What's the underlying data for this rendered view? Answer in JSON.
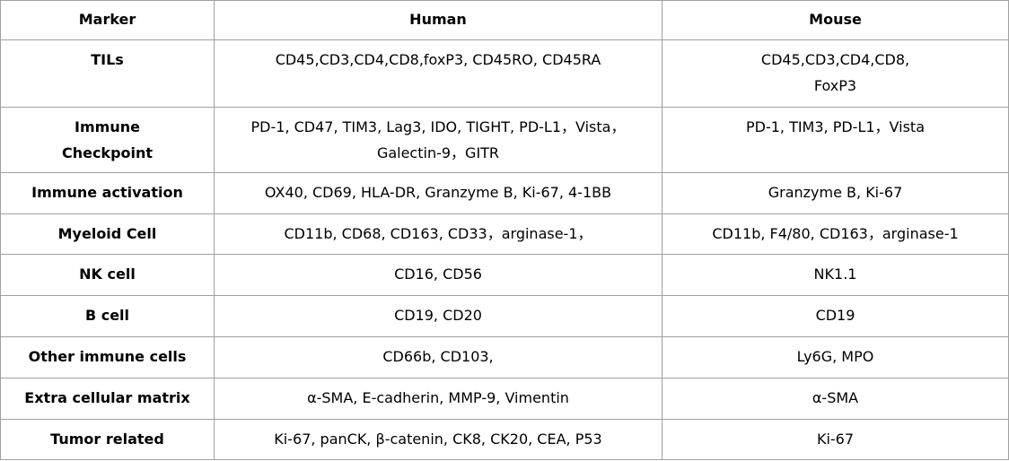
{
  "table": {
    "header": [
      "Marker",
      "Human",
      "Mouse"
    ],
    "rows": [
      [
        [
          "TILs"
        ],
        [
          "CD45,CD3,CD4,CD8,foxP3, CD45RO, CD45RA"
        ],
        [
          "CD45,CD3,CD4,CD8,",
          "FoxP3"
        ]
      ],
      [
        [
          "Immune",
          "Checkpoint"
        ],
        [
          "PD-1, CD47, TIM3, Lag3, IDO,  TIGHT, PD-L1，Vista，",
          "Galectin-9，GITR"
        ],
        [
          "PD-1, TIM3, PD-L1，Vista"
        ]
      ],
      [
        [
          "Immune activation"
        ],
        [
          "OX40, CD69, HLA-DR, Granzyme B, Ki-67, 4-1BB"
        ],
        [
          "Granzyme B, Ki-67"
        ]
      ],
      [
        [
          "Myeloid Cell"
        ],
        [
          "CD11b, CD68, CD163, CD33，arginase-1，"
        ],
        [
          "CD11b, F4/80, CD163，arginase-1"
        ]
      ],
      [
        [
          "NK cell"
        ],
        [
          "CD16, CD56"
        ],
        [
          "NK1.1"
        ]
      ],
      [
        [
          "B cell"
        ],
        [
          "CD19, CD20"
        ],
        [
          "CD19"
        ]
      ],
      [
        [
          "Other immune cells"
        ],
        [
          "CD66b, CD103,"
        ],
        [
          "Ly6G, MPO"
        ]
      ],
      [
        [
          "Extra cellular matrix"
        ],
        [
          "α-SMA, E-cadherin, MMP-9, Vimentin"
        ],
        [
          "α-SMA"
        ]
      ],
      [
        [
          "Tumor related"
        ],
        [
          "Ki-67, panCK, β-catenin, CK8, CK20, CEA, P53"
        ],
        [
          "Ki-67"
        ]
      ]
    ]
  }
}
